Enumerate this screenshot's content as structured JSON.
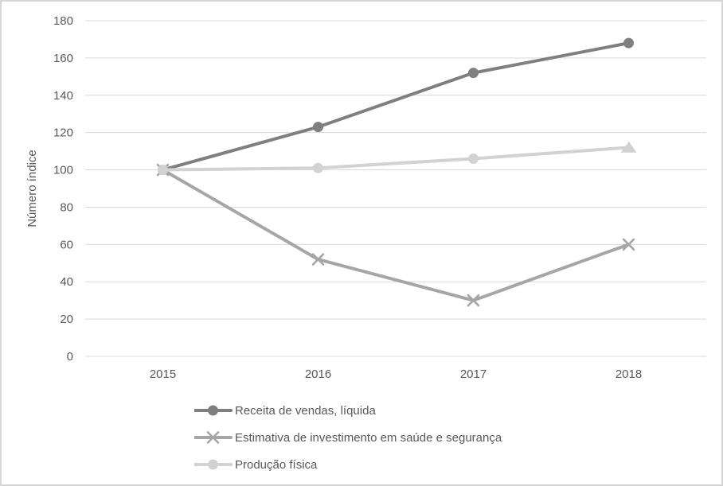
{
  "chart_data": {
    "type": "line",
    "categories": [
      "2015",
      "2016",
      "2017",
      "2018"
    ],
    "series": [
      {
        "name": "Receita de vendas, líquida",
        "values": [
          100,
          123,
          152,
          168
        ],
        "color": "#7f7f7f",
        "marker": "circle"
      },
      {
        "name": "Estimativa de investimento em saúde e segurança",
        "values": [
          100,
          52,
          30,
          60
        ],
        "color": "#a6a6a6",
        "marker": "x"
      },
      {
        "name": "Produção física",
        "values": [
          100,
          101,
          106,
          112
        ],
        "color": "#d2d2d2",
        "marker": "circle",
        "end_marker": "triangle"
      }
    ],
    "title": "",
    "xlabel": "",
    "ylabel": "Número índice",
    "ylim": [
      0,
      180
    ],
    "y_tick_step": 20,
    "y_ticks": [
      "0",
      "20",
      "40",
      "60",
      "80",
      "100",
      "120",
      "140",
      "160",
      "180"
    ],
    "grid": true,
    "legend_position": "bottom-left"
  },
  "colors": {
    "background": "#ffffff",
    "frame_border": "#d6d6d6",
    "gridline": "#d9d9d9",
    "axis_line": "#d9d9d9",
    "tick_label": "#595959",
    "legend_text": "#595959"
  }
}
